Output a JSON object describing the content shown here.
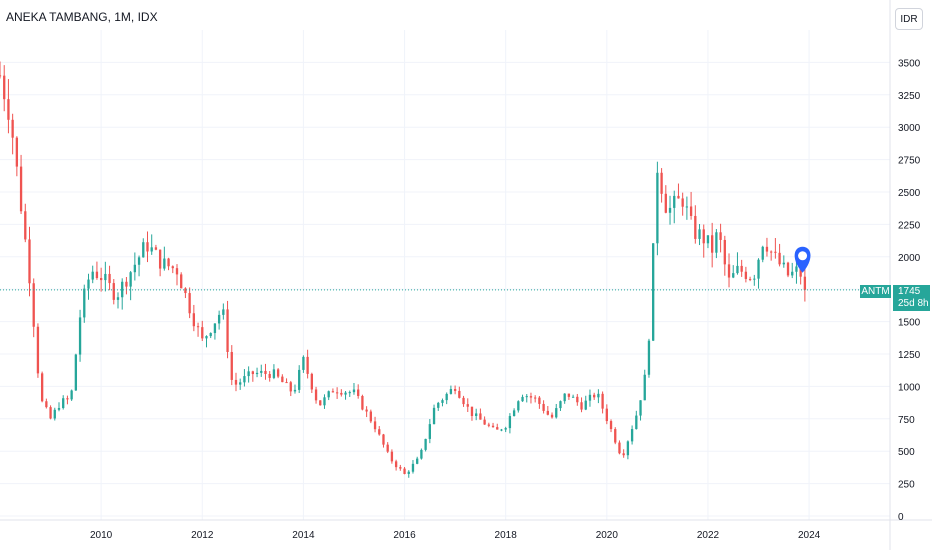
{
  "header": {
    "title": "ANEKA TAMBANG, 1M, IDX"
  },
  "currency_button": {
    "label": "IDR"
  },
  "last_price": {
    "symbol": "ANTM",
    "value": "1745",
    "countdown": "25d 8h"
  },
  "colors": {
    "up": "#26a69a",
    "down": "#ef5350",
    "grid": "#f0f3fa",
    "axis_text": "#131722",
    "marker": "#2962ff"
  },
  "icons": {
    "marker": "map-pin-icon"
  },
  "chart_data": {
    "type": "candlestick",
    "title": "ANEKA TAMBANG, 1M, IDX",
    "xlabel": "",
    "ylabel": "",
    "ylim": [
      0,
      3750
    ],
    "x_range": [
      2008.0,
      2025.6
    ],
    "x_ticks": [
      "2010",
      "2012",
      "2014",
      "2016",
      "2018",
      "2020",
      "2022",
      "2024"
    ],
    "y_ticks": [
      "0",
      "250",
      "500",
      "750",
      "1000",
      "1250",
      "1500",
      "1750",
      "2000",
      "2250",
      "2500",
      "2750",
      "3000",
      "3250",
      "3500"
    ],
    "last_price": 1745,
    "grid": true,
    "anchors": [
      [
        2008.0,
        3400
      ],
      [
        2008.2,
        3100
      ],
      [
        2008.6,
        1800
      ],
      [
        2008.8,
        900
      ],
      [
        2009.0,
        750
      ],
      [
        2009.2,
        880
      ],
      [
        2009.4,
        900
      ],
      [
        2009.6,
        1600
      ],
      [
        2009.8,
        1900
      ],
      [
        2010.0,
        1850
      ],
      [
        2010.3,
        1700
      ],
      [
        2010.6,
        1900
      ],
      [
        2010.9,
        2100
      ],
      [
        2011.2,
        1950
      ],
      [
        2011.5,
        1900
      ],
      [
        2011.8,
        1550
      ],
      [
        2012.0,
        1350
      ],
      [
        2012.4,
        1600
      ],
      [
        2012.6,
        1000
      ],
      [
        2013.0,
        1100
      ],
      [
        2013.4,
        1100
      ],
      [
        2013.8,
        950
      ],
      [
        2014.0,
        1200
      ],
      [
        2014.3,
        850
      ],
      [
        2014.6,
        980
      ],
      [
        2015.0,
        950
      ],
      [
        2015.4,
        700
      ],
      [
        2015.7,
        450
      ],
      [
        2016.0,
        320
      ],
      [
        2016.3,
        450
      ],
      [
        2016.6,
        850
      ],
      [
        2017.0,
        1000
      ],
      [
        2017.3,
        800
      ],
      [
        2017.8,
        650
      ],
      [
        2018.0,
        700
      ],
      [
        2018.3,
        950
      ],
      [
        2018.6,
        900
      ],
      [
        2018.9,
        750
      ],
      [
        2019.2,
        950
      ],
      [
        2019.5,
        850
      ],
      [
        2019.8,
        950
      ],
      [
        2020.1,
        650
      ],
      [
        2020.3,
        450
      ],
      [
        2020.6,
        800
      ],
      [
        2020.8,
        1150
      ],
      [
        2020.9,
        1900
      ],
      [
        2021.0,
        2700
      ],
      [
        2021.2,
        2350
      ],
      [
        2021.5,
        2450
      ],
      [
        2021.7,
        2200
      ],
      [
        2021.9,
        2150
      ],
      [
        2022.1,
        2050
      ],
      [
        2022.2,
        2200
      ],
      [
        2022.4,
        1800
      ],
      [
        2022.6,
        1900
      ],
      [
        2022.9,
        1850
      ],
      [
        2023.1,
        2150
      ],
      [
        2023.3,
        2000
      ],
      [
        2023.6,
        1850
      ],
      [
        2023.8,
        1900
      ],
      [
        2023.95,
        1745
      ]
    ]
  }
}
